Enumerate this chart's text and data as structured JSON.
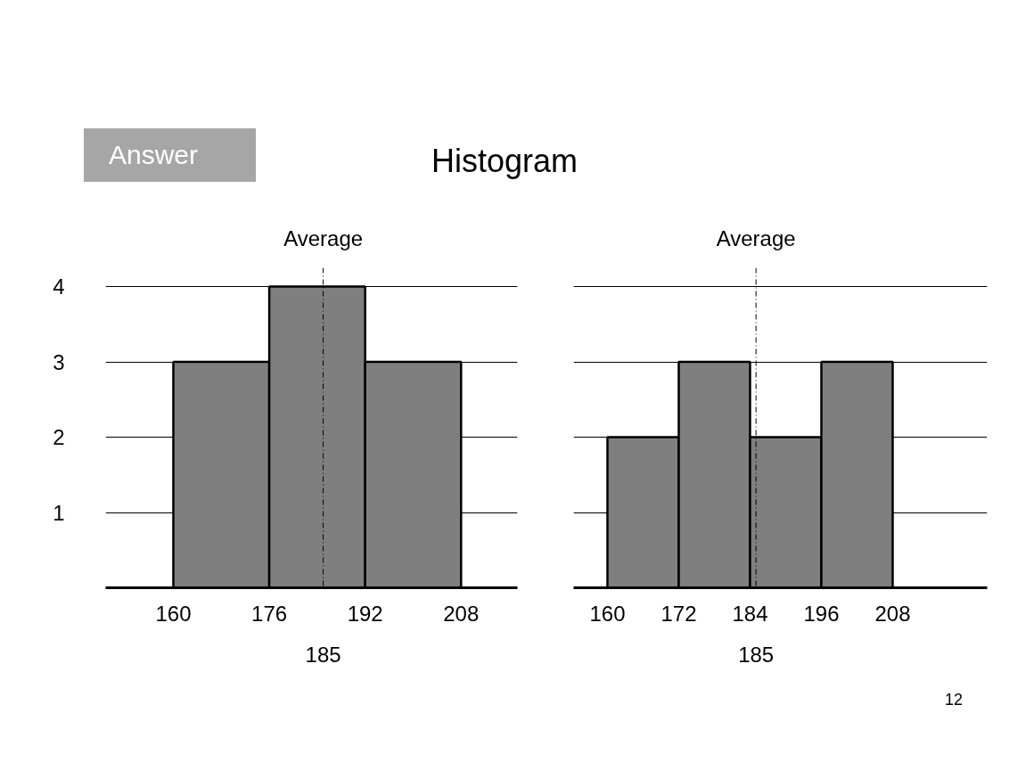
{
  "chart_data": [
    {
      "type": "histogram",
      "title": "Histogram",
      "annotations": [
        "Answer",
        "185"
      ],
      "bins": [
        160,
        176,
        192,
        208
      ],
      "values": [
        3,
        4,
        3
      ],
      "color": "#7f7f7f",
      "xlim": [
        148.7,
        217.4
      ],
      "ylim": [
        0,
        4.25
      ],
      "xticks": [
        160,
        176,
        192,
        208
      ],
      "yticks": [
        1,
        2,
        3,
        4
      ],
      "grid": "y",
      "ref_lines": [
        {
          "axis": "x",
          "value": 185,
          "label": "Average",
          "line_style": "dashed"
        }
      ]
    },
    {
      "type": "histogram",
      "annotations": [
        "12",
        "185"
      ],
      "bins": [
        160,
        172,
        184,
        196,
        208
      ],
      "values": [
        2,
        3,
        2,
        3
      ],
      "color": "#7f7f7f",
      "xlim": [
        154.3,
        223.9
      ],
      "ylim": [
        0,
        4.25
      ],
      "xticks": [
        160,
        172,
        184,
        196,
        208
      ],
      "yticks": [
        1,
        2,
        3,
        4
      ],
      "grid": "y",
      "tick_labels": "x",
      "ref_lines": [
        {
          "axis": "x",
          "value": 185,
          "label": "Average",
          "line_style": "dashed"
        }
      ]
    }
  ]
}
